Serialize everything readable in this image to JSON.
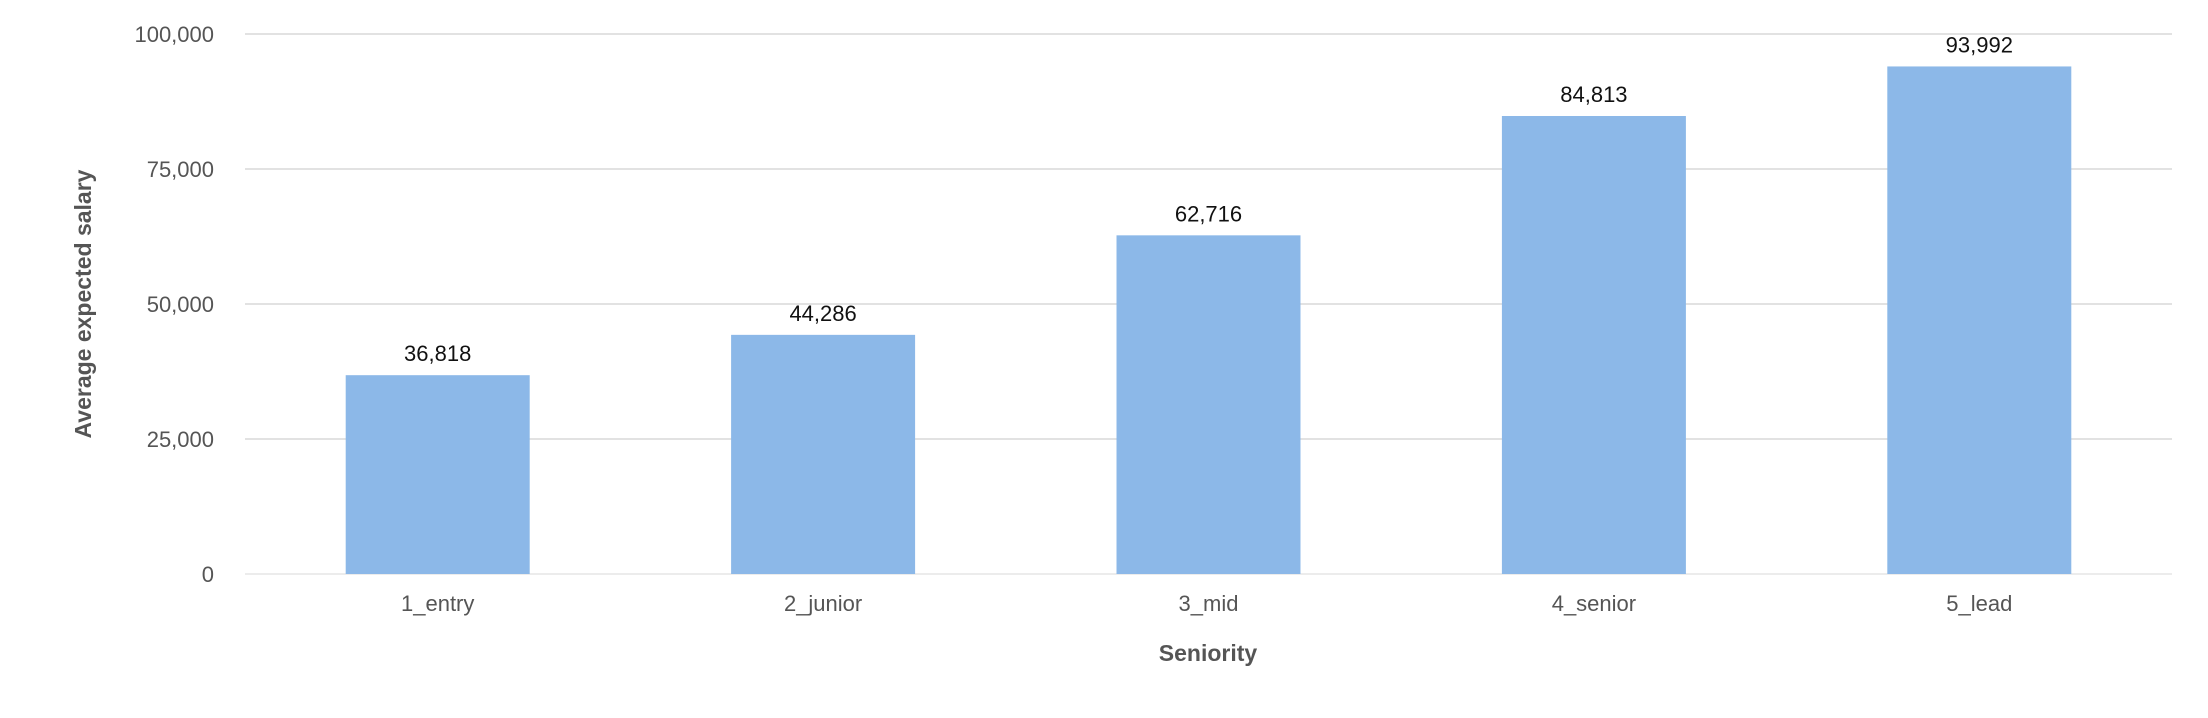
{
  "chart_data": {
    "type": "bar",
    "title": "",
    "xlabel": "Seniority",
    "ylabel": "Average expected salary",
    "categories": [
      "1_entry",
      "2_junior",
      "3_mid",
      "4_senior",
      "5_lead"
    ],
    "values": [
      36818,
      44286,
      62716,
      84813,
      93992
    ],
    "data_labels": [
      "36,818",
      "44,286",
      "62,716",
      "84,813",
      "93,992"
    ],
    "ylim": [
      0,
      100000
    ],
    "yticks": [
      0,
      25000,
      50000,
      75000,
      100000
    ],
    "ytick_labels": [
      "0",
      "25,000",
      "50,000",
      "75,000",
      "100,000"
    ],
    "grid": true,
    "legend": "none",
    "bar_color": "#8cb8e8"
  }
}
